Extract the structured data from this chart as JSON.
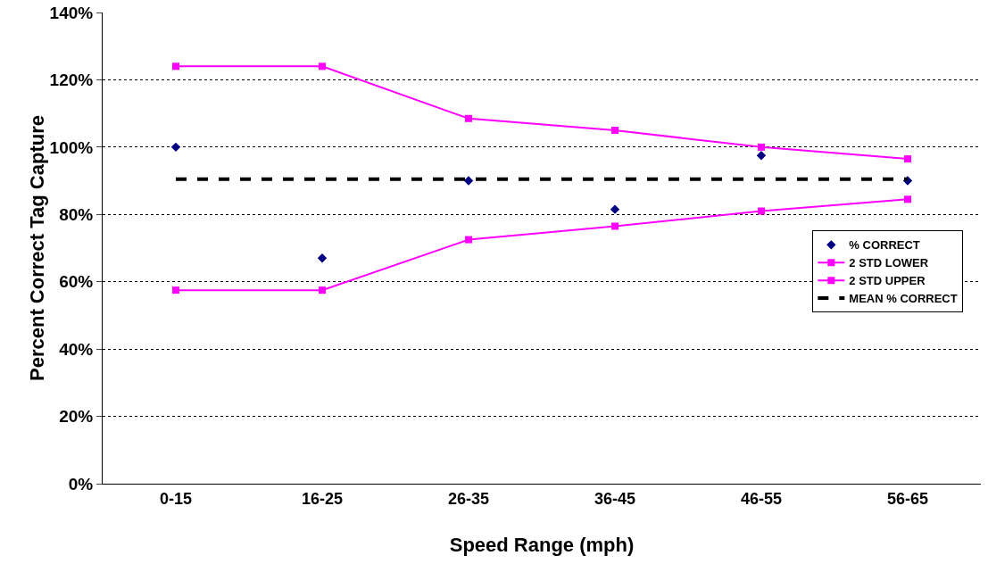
{
  "chart_data": {
    "type": "line",
    "xlabel": "Speed Range (mph)",
    "ylabel": "Percent Correct Tag Capture",
    "categories": [
      "0-15",
      "16-25",
      "26-35",
      "36-45",
      "46-55",
      "56-65"
    ],
    "series": [
      {
        "name": "% CORRECT",
        "type": "scatter",
        "marker": "diamond",
        "color": "#000080",
        "values": [
          100,
          67,
          90,
          81.5,
          97.5,
          90
        ]
      },
      {
        "name": "2 STD LOWER",
        "type": "line",
        "marker": "square",
        "line_style": "solid",
        "color": "#ff00ff",
        "values": [
          57.5,
          57.5,
          72.5,
          76.5,
          81,
          84.5
        ]
      },
      {
        "name": "2 STD UPPER",
        "type": "line",
        "marker": "square",
        "line_style": "solid",
        "color": "#ff00ff",
        "values": [
          124,
          124,
          108.5,
          105,
          100,
          96.5
        ]
      },
      {
        "name": "MEAN % CORRECT",
        "type": "line",
        "marker": "none",
        "line_style": "dashed",
        "color": "#000000",
        "values": [
          90.5,
          90.5,
          90.5,
          90.5,
          90.5,
          90.5
        ]
      }
    ],
    "ylim": [
      0,
      140
    ],
    "yticks": [
      {
        "value": 0,
        "label": "0%"
      },
      {
        "value": 20,
        "label": "20%"
      },
      {
        "value": 40,
        "label": "40%"
      },
      {
        "value": 60,
        "label": "60%"
      },
      {
        "value": 80,
        "label": "80%"
      },
      {
        "value": 100,
        "label": "100%"
      },
      {
        "value": 120,
        "label": "120%"
      },
      {
        "value": 140,
        "label": "140%"
      }
    ],
    "grid": "y",
    "legend": "right"
  }
}
